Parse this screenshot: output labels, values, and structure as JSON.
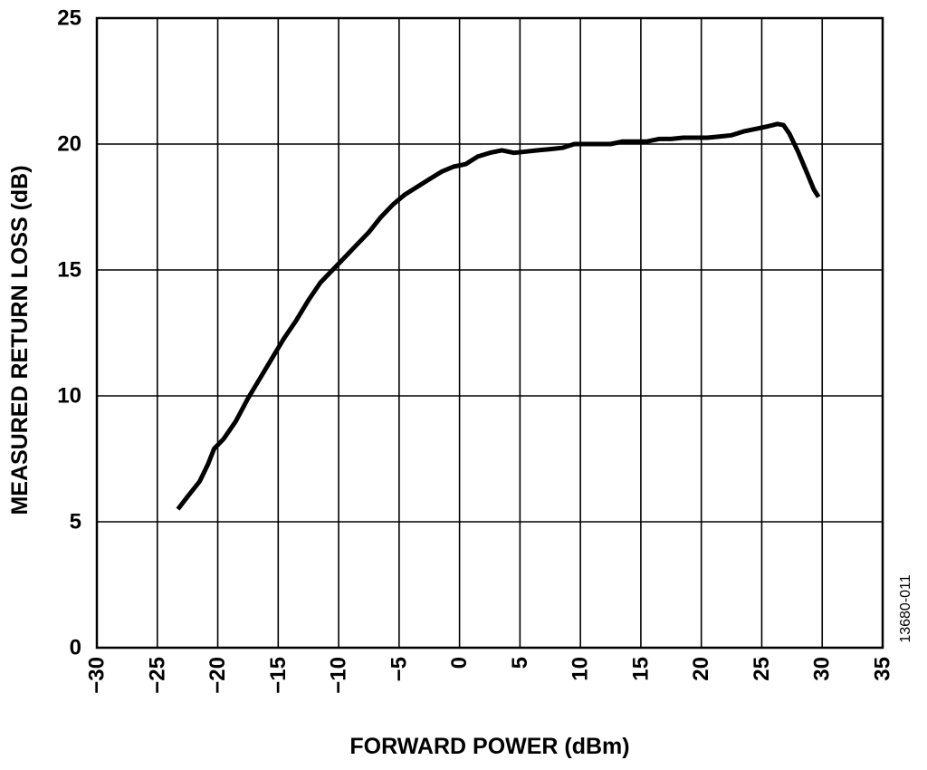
{
  "chart_data": {
    "type": "line",
    "xlabel": "FORWARD POWER (dBm)",
    "ylabel": "MEASURED RETURN LOSS (dB)",
    "xlim": [
      -30,
      35
    ],
    "ylim": [
      0,
      25
    ],
    "xticks": [
      -30,
      -25,
      -20,
      -15,
      -10,
      -5,
      0,
      5,
      10,
      15,
      20,
      25,
      30,
      35
    ],
    "yticks": [
      0,
      5,
      10,
      15,
      20,
      25
    ],
    "xtick_labels": [
      "−30",
      "−25",
      "−20",
      "−15",
      "−10",
      "−5",
      "0",
      "5",
      "10",
      "15",
      "20",
      "25",
      "30",
      "35"
    ],
    "ytick_labels": [
      "0",
      "5",
      "10",
      "15",
      "20",
      "25"
    ],
    "grid": true,
    "series": [
      {
        "x": [
          -23.3,
          -22.5,
          -21.5,
          -20.8,
          -20.3,
          -19.5,
          -18.5,
          -17.5,
          -16.5,
          -15.5,
          -14.5,
          -13.5,
          -12.5,
          -11.5,
          -10.5,
          -9.5,
          -8.5,
          -7.5,
          -6.5,
          -5.5,
          -4.5,
          -3.5,
          -2.5,
          -1.5,
          -0.5,
          0.5,
          1.5,
          2.5,
          3.5,
          4.5,
          5.5,
          6.5,
          7.5,
          8.5,
          9.5,
          10.5,
          11.5,
          12.5,
          13.5,
          14.5,
          15.5,
          16.5,
          17.5,
          18.5,
          19.5,
          20.5,
          21.5,
          22.5,
          23.5,
          24.5,
          25.5,
          26.3,
          26.8,
          27.3,
          28.0,
          28.7,
          29.3,
          29.7
        ],
        "y": [
          5.5,
          6.0,
          6.6,
          7.3,
          7.9,
          8.3,
          9.0,
          9.9,
          10.7,
          11.5,
          12.3,
          13.0,
          13.8,
          14.5,
          15.0,
          15.5,
          16.0,
          16.5,
          17.1,
          17.6,
          18.0,
          18.3,
          18.6,
          18.9,
          19.1,
          19.2,
          19.5,
          19.65,
          19.75,
          19.65,
          19.7,
          19.75,
          19.8,
          19.85,
          20.0,
          20.0,
          20.0,
          20.0,
          20.1,
          20.1,
          20.1,
          20.2,
          20.2,
          20.25,
          20.25,
          20.25,
          20.3,
          20.35,
          20.5,
          20.6,
          20.7,
          20.8,
          20.75,
          20.4,
          19.7,
          18.9,
          18.2,
          17.9
        ],
        "color": "#000000"
      }
    ]
  },
  "figure_id": "13680-011"
}
